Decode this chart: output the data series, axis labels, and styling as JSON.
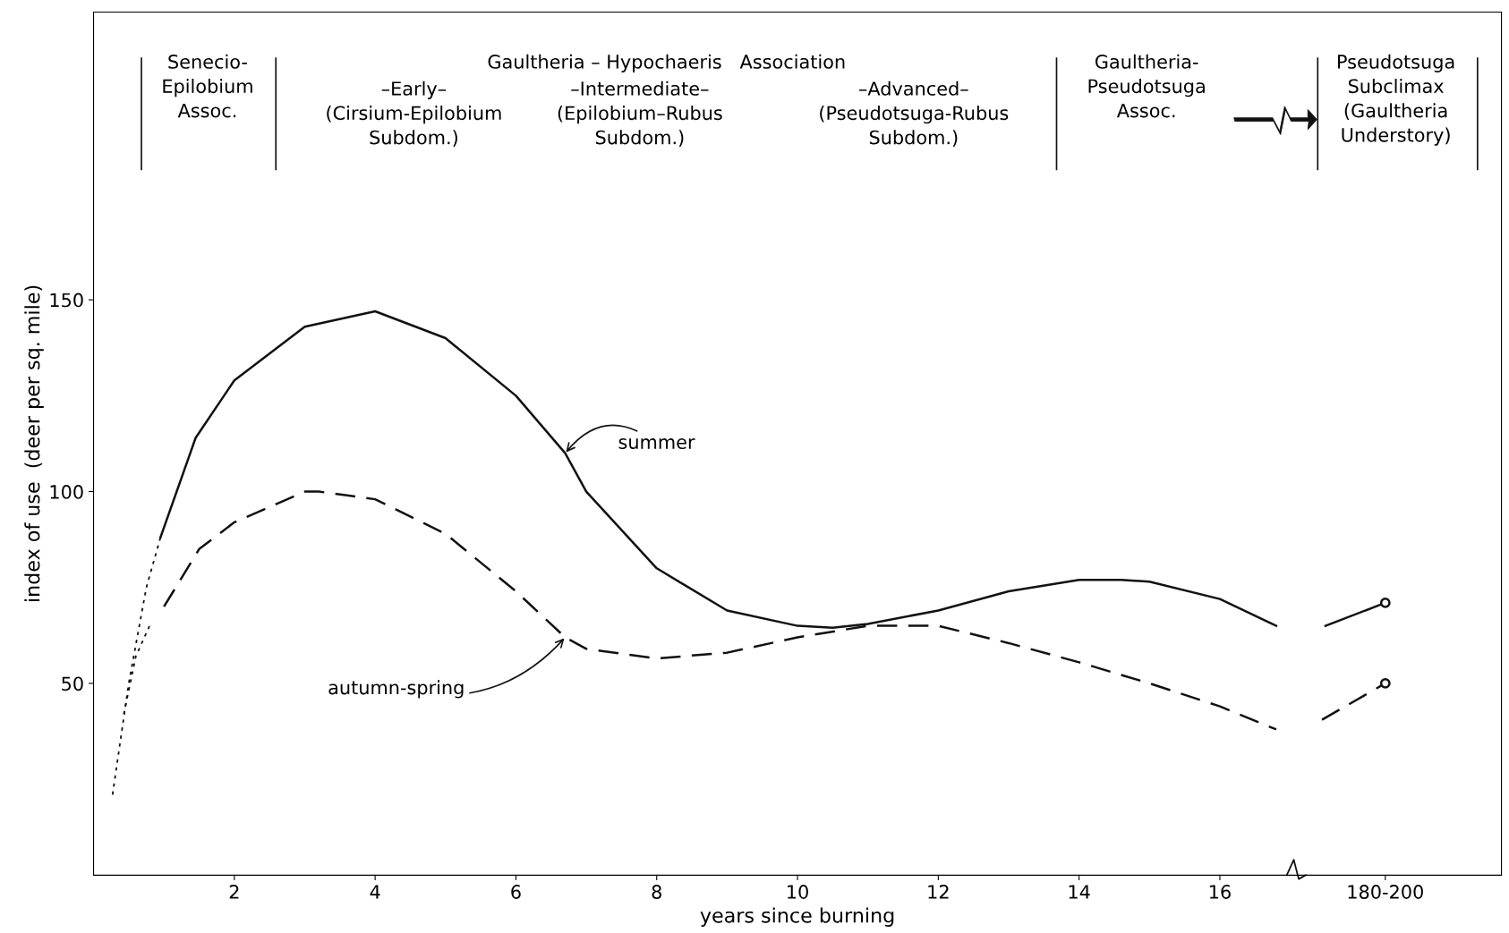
{
  "chart_data": {
    "type": "line",
    "xlabel": "years since burning",
    "ylabel": "index of use  (deer per sq. mile)",
    "xlim": [
      0,
      20
    ],
    "ylim": [
      0,
      225
    ],
    "xticks": [
      2,
      4,
      6,
      8,
      10,
      12,
      14,
      16,
      {
        "value": 18.35,
        "label": "180-200"
      }
    ],
    "yticks": [
      50,
      100,
      150
    ],
    "series": [
      {
        "color": "#111111",
        "line_style": "dotted",
        "x": [
          0.27,
          0.5,
          0.75,
          0.95
        ],
        "values": [
          21,
          50,
          75,
          88
        ]
      },
      {
        "color": "#111111",
        "line_style": "solid",
        "x": [
          0.95,
          1.45,
          2,
          3,
          4,
          5,
          6,
          6.7,
          7,
          8,
          9,
          10,
          10.5,
          11,
          12,
          13,
          14,
          14.6,
          15,
          16,
          16.8
        ],
        "values": [
          88,
          114,
          129,
          143,
          147,
          140,
          125,
          110,
          100,
          80,
          69,
          65,
          64.5,
          65.5,
          69,
          74,
          77,
          77,
          76.5,
          72,
          65
        ]
      },
      {
        "color": "#111111",
        "line_style": "solid",
        "x": [
          17.5,
          18.35
        ],
        "values": [
          65,
          71
        ]
      },
      {
        "color": "#111111",
        "line_style": "dotted",
        "x": [
          0.43,
          0.6,
          0.82
        ],
        "values": [
          42,
          57,
          66
        ]
      },
      {
        "color": "#111111",
        "line_style": "dashed",
        "x": [
          1.0,
          1.5,
          2,
          3,
          3.2,
          4,
          5,
          6,
          6.7,
          7,
          8,
          9,
          10,
          11,
          12,
          13,
          14,
          15,
          16,
          16.8
        ],
        "values": [
          70,
          85,
          92,
          100,
          100,
          98,
          89,
          74,
          62,
          59,
          56.5,
          58,
          62,
          65,
          65,
          60.5,
          55.5,
          50,
          44,
          38
        ]
      },
      {
        "color": "#111111",
        "line_style": "dashed",
        "x": [
          17.45,
          18.35
        ],
        "values": [
          40.5,
          50
        ]
      },
      {
        "type": "scatter",
        "color": "#111111",
        "marker": "circle",
        "x": [
          18.35,
          18.35
        ],
        "values": [
          71,
          50
        ]
      }
    ],
    "annotations": [
      {
        "text": "summer",
        "x": 6.7,
        "y": 110
      },
      {
        "text": "autumn-spring",
        "x": 6.7,
        "y": 62
      },
      "Senecio-\nEpilobium\nAssoc.",
      "Gaultheria – Hypochaeris   Association",
      "–Early–\n(Cirsium-Epilobium\nSubdom.)",
      "–Intermediate–\n(Epilobium–Rubus\nSubdom.)",
      "–Advanced–\n(Pseudotsuga-Rubus\nSubdom.)",
      "Gaultheria-\nPseudotsuga\nAssoc.",
      "Pseudotsuga\nSubclimax\n(Gaultheria\nUnderstory)"
    ]
  }
}
